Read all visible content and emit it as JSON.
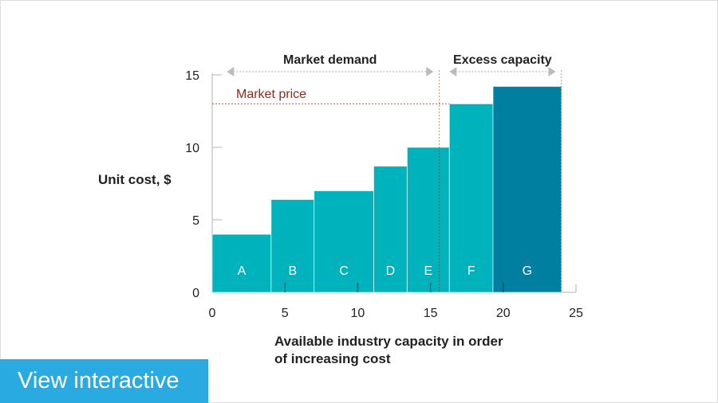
{
  "chart_data": {
    "type": "bar",
    "variant": "variable-width cost curve",
    "ylabel": "Unit cost, $",
    "xlabel": "Available industry capacity in order of increasing cost",
    "xlim": [
      0,
      25
    ],
    "ylim": [
      0,
      15
    ],
    "xticks": [
      0,
      5,
      10,
      15,
      20,
      25
    ],
    "yticks": [
      0,
      5,
      10,
      15
    ],
    "bars": [
      {
        "label": "A",
        "start": 0,
        "end": 4.05,
        "value": 4.0,
        "color": "#00B2BC"
      },
      {
        "label": "B",
        "start": 4.05,
        "end": 7.0,
        "value": 6.4,
        "color": "#00B2BC"
      },
      {
        "label": "C",
        "start": 7.0,
        "end": 11.1,
        "value": 7.0,
        "color": "#00B2BC"
      },
      {
        "label": "D",
        "start": 11.1,
        "end": 13.4,
        "value": 8.7,
        "color": "#00B2BC"
      },
      {
        "label": "E",
        "start": 13.4,
        "end": 16.3,
        "value": 10.0,
        "color": "#00B2BC"
      },
      {
        "label": "F",
        "start": 16.3,
        "end": 19.3,
        "value": 13.0,
        "color": "#00B2BC"
      },
      {
        "label": "G",
        "start": 19.3,
        "end": 24.0,
        "value": 14.2,
        "color": "#007FA0"
      }
    ],
    "market_price": {
      "label": "Market price",
      "value": 13.0,
      "color": "#8B2A1A"
    },
    "market_demand": {
      "label": "Market demand",
      "value": 15.6
    },
    "excess_capacity": {
      "label": "Excess capacity"
    },
    "grid": false
  },
  "button": {
    "label": "View interactive",
    "color": "#29ABE2"
  }
}
